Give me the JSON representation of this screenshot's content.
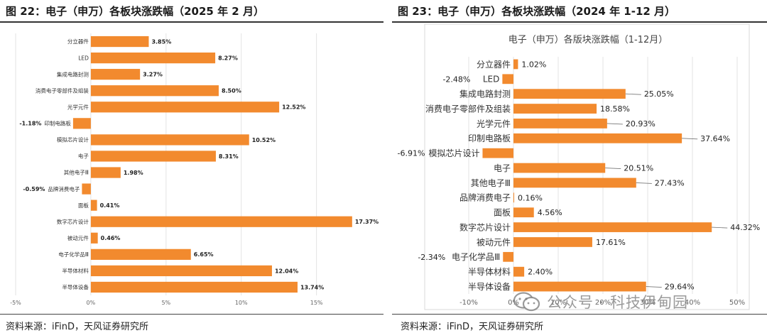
{
  "left": {
    "figure_title": "图 22：电子（申万）各板块涨跌幅（2025 年 2 月）",
    "source": "资料来源：iFinD，天风证券研究所"
  },
  "right": {
    "figure_title": "图 23：电子（申万）各板块涨跌幅（2024 年 1-12 月）",
    "source": "资料来源：iFinD，天风证券研究所"
  },
  "watermark": {
    "text": "公众号 · 科技伊甸园"
  },
  "chart_data": [
    {
      "type": "bar",
      "orientation": "horizontal",
      "title": "",
      "categories": [
        "分立器件",
        "LED",
        "集成电路封测",
        "消费电子零部件及组装",
        "光学元件",
        "印制电路板",
        "模拟芯片设计",
        "电子",
        "其他电子Ⅲ",
        "品牌消费电子",
        "面板",
        "数字芯片设计",
        "被动元件",
        "电子化学品Ⅲ",
        "半导体材料",
        "半导体设备"
      ],
      "values": [
        3.85,
        8.27,
        3.27,
        8.5,
        12.52,
        -1.18,
        10.52,
        8.31,
        1.98,
        -0.59,
        0.41,
        17.37,
        0.46,
        6.65,
        12.04,
        13.74
      ],
      "value_labels": [
        "3.85%",
        "8.27%",
        "3.27%",
        "8.50%",
        "12.52%",
        "-1.18%",
        "10.52%",
        "8.31%",
        "1.98%",
        "-0.59%",
        "0.41%",
        "17.37%",
        "0.46%",
        "6.65%",
        "12.04%",
        "13.74%"
      ],
      "xlim": [
        -5,
        17
      ],
      "xticks": [
        -5,
        0,
        5,
        10,
        15
      ],
      "xtick_labels": [
        "-5%",
        "0%",
        "5%",
        "10%",
        "15%"
      ],
      "grid": true,
      "color": "#F28A2E"
    },
    {
      "type": "bar",
      "orientation": "horizontal",
      "title": "电子（申万）各版块涨跌幅（1-12月）",
      "categories": [
        "分立器件",
        "LED",
        "集成电路封测",
        "消费电子零部件及组装",
        "光学元件",
        "印制电路板",
        "模拟芯片设计",
        "电子",
        "其他电子Ⅲ",
        "品牌消费电子",
        "面板",
        "数字芯片设计",
        "被动元件",
        "电子化学品Ⅲ",
        "半导体材料",
        "半导体设备"
      ],
      "values": [
        1.02,
        -2.48,
        25.05,
        18.58,
        20.93,
        37.64,
        -6.91,
        20.51,
        27.43,
        0.16,
        4.56,
        44.32,
        17.61,
        -2.34,
        2.4,
        29.64
      ],
      "value_labels": [
        "1.02%",
        "-2.48%",
        "25.05%",
        "18.58%",
        "20.93%",
        "37.64%",
        "-6.91%",
        "20.51%",
        "27.43%",
        "0.16%",
        "4.56%",
        "44.32%",
        "17.61%",
        "-2.34%",
        "2.40%",
        "29.64%"
      ],
      "xlim": [
        -10,
        50
      ],
      "xticks": [
        -10,
        0,
        10,
        20,
        30,
        40,
        50
      ],
      "xtick_labels": [
        "-10%",
        "0%",
        "10%",
        "20%",
        "30%",
        "40%",
        "50%"
      ],
      "grid": true,
      "color": "#F28A2E"
    }
  ]
}
